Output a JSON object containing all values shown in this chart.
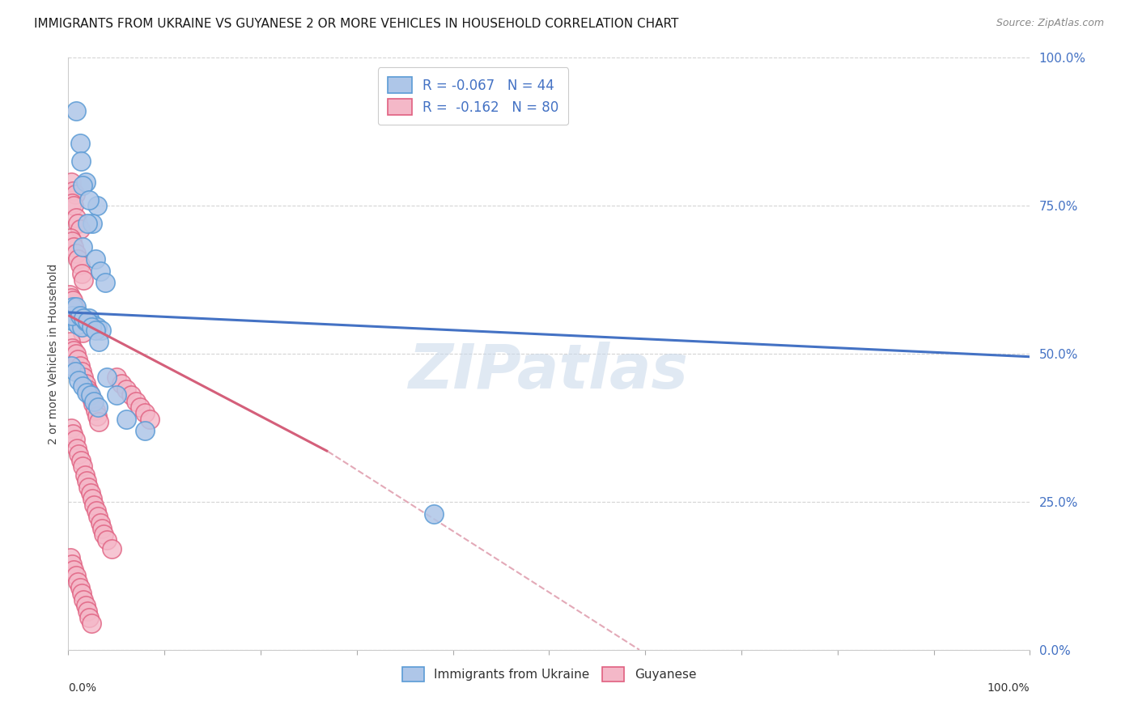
{
  "title": "IMMIGRANTS FROM UKRAINE VS GUYANESE 2 OR MORE VEHICLES IN HOUSEHOLD CORRELATION CHART",
  "source": "Source: ZipAtlas.com",
  "ylabel": "2 or more Vehicles in Household",
  "ytick_values": [
    0.0,
    0.25,
    0.5,
    0.75,
    1.0
  ],
  "xlim": [
    0.0,
    1.0
  ],
  "ylim": [
    0.0,
    1.0
  ],
  "ukraine_color": "#aec6e8",
  "ukraine_edge": "#5b9bd5",
  "guyanese_color": "#f4b8c8",
  "guyanese_edge": "#e06080",
  "ukraine_R": -0.067,
  "ukraine_N": 44,
  "guyanese_R": -0.162,
  "guyanese_N": 80,
  "ukraine_line_color": "#4472c4",
  "guyanese_line_color": "#d45f7a",
  "dashed_line_color": "#e0a0b0",
  "background_color": "#ffffff",
  "grid_color": "#d0d0d0",
  "watermark_color": "#c8d8ea",
  "ukraine_line": [
    0.0,
    0.57,
    1.0,
    0.495
  ],
  "guyanese_line_solid": [
    0.0,
    0.565,
    0.27,
    0.335
  ],
  "guyanese_line_dash": [
    0.27,
    0.335,
    1.0,
    -0.42
  ],
  "ukraine_scatter_x": [
    0.008,
    0.012,
    0.013,
    0.018,
    0.015,
    0.03,
    0.025,
    0.38,
    0.005,
    0.01,
    0.022,
    0.02,
    0.015,
    0.028,
    0.033,
    0.038,
    0.006,
    0.01,
    0.014,
    0.018,
    0.022,
    0.026,
    0.03,
    0.034,
    0.004,
    0.008,
    0.012,
    0.016,
    0.02,
    0.024,
    0.028,
    0.032,
    0.003,
    0.007,
    0.011,
    0.015,
    0.019,
    0.023,
    0.027,
    0.031,
    0.04,
    0.05,
    0.06,
    0.08
  ],
  "ukraine_scatter_y": [
    0.91,
    0.855,
    0.825,
    0.79,
    0.785,
    0.75,
    0.72,
    0.23,
    0.58,
    0.565,
    0.76,
    0.72,
    0.68,
    0.66,
    0.64,
    0.62,
    0.555,
    0.55,
    0.545,
    0.555,
    0.56,
    0.55,
    0.545,
    0.54,
    0.565,
    0.58,
    0.565,
    0.56,
    0.555,
    0.545,
    0.54,
    0.52,
    0.48,
    0.47,
    0.455,
    0.445,
    0.435,
    0.43,
    0.42,
    0.41,
    0.46,
    0.43,
    0.39,
    0.37
  ],
  "guyanese_scatter_x": [
    0.003,
    0.005,
    0.007,
    0.004,
    0.006,
    0.008,
    0.01,
    0.012,
    0.002,
    0.004,
    0.006,
    0.008,
    0.01,
    0.012,
    0.014,
    0.016,
    0.001,
    0.003,
    0.005,
    0.007,
    0.009,
    0.011,
    0.013,
    0.015,
    0.002,
    0.004,
    0.006,
    0.008,
    0.01,
    0.012,
    0.014,
    0.016,
    0.018,
    0.02,
    0.022,
    0.024,
    0.026,
    0.028,
    0.03,
    0.032,
    0.003,
    0.005,
    0.007,
    0.009,
    0.011,
    0.013,
    0.015,
    0.017,
    0.019,
    0.021,
    0.023,
    0.025,
    0.027,
    0.029,
    0.031,
    0.033,
    0.035,
    0.037,
    0.04,
    0.045,
    0.05,
    0.055,
    0.06,
    0.065,
    0.07,
    0.075,
    0.08,
    0.085,
    0.002,
    0.004,
    0.006,
    0.008,
    0.01,
    0.012,
    0.014,
    0.016,
    0.018,
    0.02,
    0.022,
    0.024
  ],
  "guyanese_scatter_y": [
    0.79,
    0.775,
    0.77,
    0.755,
    0.75,
    0.73,
    0.72,
    0.71,
    0.695,
    0.69,
    0.68,
    0.67,
    0.66,
    0.65,
    0.635,
    0.625,
    0.6,
    0.595,
    0.59,
    0.575,
    0.565,
    0.555,
    0.545,
    0.535,
    0.52,
    0.51,
    0.505,
    0.5,
    0.49,
    0.48,
    0.47,
    0.46,
    0.45,
    0.44,
    0.435,
    0.425,
    0.415,
    0.405,
    0.395,
    0.385,
    0.375,
    0.365,
    0.355,
    0.34,
    0.33,
    0.32,
    0.31,
    0.295,
    0.285,
    0.275,
    0.265,
    0.255,
    0.245,
    0.235,
    0.225,
    0.215,
    0.205,
    0.195,
    0.185,
    0.17,
    0.46,
    0.45,
    0.44,
    0.43,
    0.42,
    0.41,
    0.4,
    0.39,
    0.155,
    0.145,
    0.135,
    0.125,
    0.115,
    0.105,
    0.095,
    0.085,
    0.075,
    0.065,
    0.055,
    0.045
  ]
}
